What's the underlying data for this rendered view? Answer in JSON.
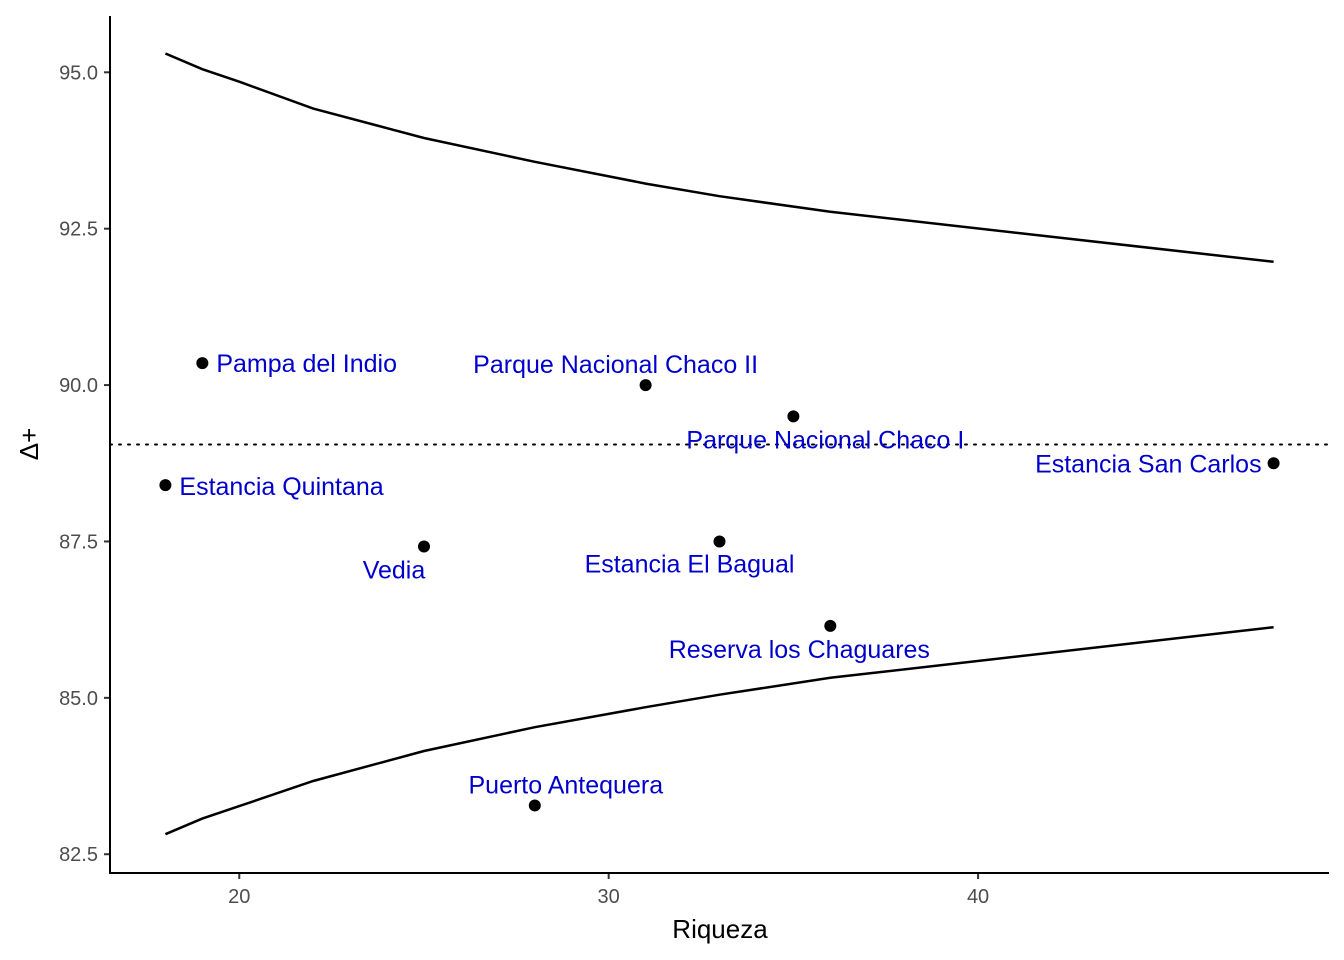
{
  "chart_data": {
    "type": "scatter",
    "xlabel": "Riqueza",
    "ylabel": "Δ+",
    "xlim": [
      16.5,
      49.5
    ],
    "ylim": [
      82.2,
      95.9
    ],
    "x_ticks": [
      20,
      30,
      40
    ],
    "x_tick_labels": [
      "20",
      "30",
      "40"
    ],
    "y_ticks": [
      82.5,
      85.0,
      87.5,
      90.0,
      92.5,
      95.0
    ],
    "y_tick_labels": [
      "82.5",
      "85.0",
      "87.5",
      "90.0",
      "92.5",
      "95.0"
    ],
    "grid": false,
    "reference_line": {
      "y": 89.05,
      "style": "dotted"
    },
    "upper_limit": {
      "x": [
        18,
        19,
        20,
        22,
        25,
        28,
        31,
        33,
        36,
        48
      ],
      "y": [
        95.3,
        95.05,
        94.85,
        94.42,
        93.95,
        93.57,
        93.22,
        93.02,
        92.77,
        91.97
      ]
    },
    "lower_limit": {
      "x": [
        18,
        19,
        20,
        22,
        25,
        28,
        31,
        33,
        36,
        48
      ],
      "y": [
        82.82,
        83.07,
        83.27,
        83.67,
        84.15,
        84.53,
        84.85,
        85.05,
        85.32,
        86.13
      ]
    },
    "point_color": "#000000",
    "label_color": "#0000cc",
    "points": [
      {
        "name": "Pampa del Indio",
        "x": 19,
        "y": 90.35
      },
      {
        "name": "Parque Nacional Chaco II",
        "x": 31,
        "y": 90.0
      },
      {
        "name": "Parque Nacional Chaco I",
        "x": 35,
        "y": 89.5
      },
      {
        "name": "Estancia San Carlos",
        "x": 48,
        "y": 88.75
      },
      {
        "name": "Estancia Quintana",
        "x": 18,
        "y": 88.4
      },
      {
        "name": "Vedia",
        "x": 25,
        "y": 87.42
      },
      {
        "name": "Estancia El Bagual",
        "x": 33,
        "y": 87.5
      },
      {
        "name": "Reserva los Chaguares",
        "x": 36,
        "y": 86.15
      },
      {
        "name": "Puerto Antequera",
        "x": 28,
        "y": 83.28
      }
    ]
  }
}
